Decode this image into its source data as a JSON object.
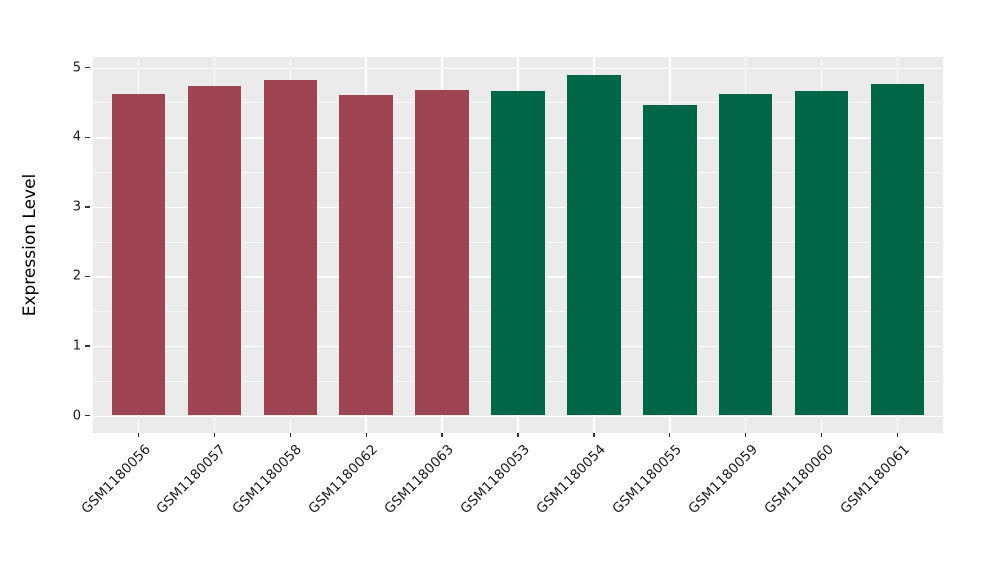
{
  "figure": {
    "background": "#FFFFFF",
    "panel_background": "#EBEBEB",
    "grid_color": "#FFFFFF",
    "tick_mark_color": "#333333",
    "tick_label_color": "#1A1A1A",
    "axis_title_color": "#000000"
  },
  "chart_data": {
    "type": "bar",
    "title": "",
    "xlabel": "",
    "ylabel": "Expression Level",
    "ylim": [
      0,
      5.2
    ],
    "yticks": [
      0,
      1,
      2,
      3,
      4,
      5
    ],
    "grid": "major-and-minor-horizontal-white, major-vertical-white-at-category-centers",
    "legend": "none",
    "x_tick_rotation_deg": 45,
    "categories": [
      "GSM1180056",
      "GSM1180057",
      "GSM1180058",
      "GSM1180062",
      "GSM1180063",
      "GSM1180053",
      "GSM1180054",
      "GSM1180055",
      "GSM1180059",
      "GSM1180060",
      "GSM1180061"
    ],
    "values": [
      4.62,
      4.74,
      4.83,
      4.61,
      4.68,
      4.66,
      4.9,
      4.46,
      4.62,
      4.67,
      4.77
    ],
    "groups": [
      "group1",
      "group1",
      "group1",
      "group1",
      "group1",
      "group2",
      "group2",
      "group2",
      "group2",
      "group2",
      "group2"
    ],
    "group_colors": {
      "group1": "#9E4452",
      "group2": "#016647"
    }
  }
}
